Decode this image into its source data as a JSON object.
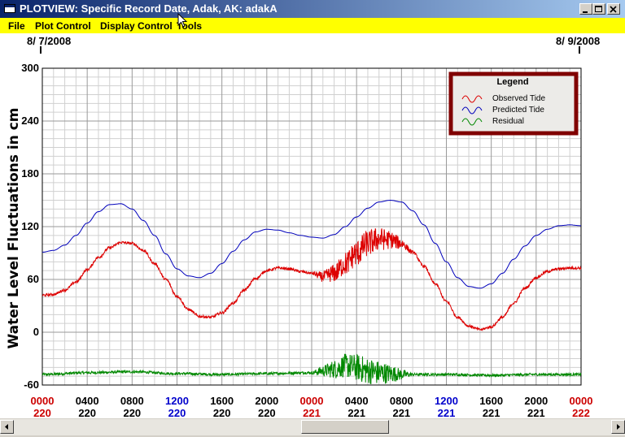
{
  "window": {
    "title": "PLOTVIEW: Specific Record Date, Adak, AK: adakA",
    "controls": [
      "minimize",
      "maximize",
      "close"
    ]
  },
  "menu": {
    "items": [
      "File",
      "Plot Control",
      "Display Control",
      "Tools"
    ]
  },
  "plot": {
    "date_left": "8/ 7/2008",
    "date_right": "8/ 9/2008",
    "ylabel": "Water Level Fluctuations in cm",
    "legend": {
      "title": "Legend",
      "observed": "Observed Tide",
      "predicted": "Predicted Tide",
      "residual": "Residual"
    }
  },
  "colors": {
    "observed": "#dd0000",
    "predicted": "#0000bb",
    "residual": "#008800",
    "legend_border": "#800000",
    "menubar": "#ffff00",
    "tick_red": "#cc0000",
    "tick_blue": "#0000cc"
  },
  "chart_data": {
    "type": "line",
    "ylabel": "Water Level Fluctuations in cm",
    "ylim": [
      -60,
      300
    ],
    "xlim_hours": [
      0,
      48
    ],
    "yticks": [
      "300",
      "240",
      "180",
      "120",
      "60",
      "0",
      "-60"
    ],
    "xticks": [
      {
        "time": "0000",
        "day": "220",
        "color": "red"
      },
      {
        "time": "0400",
        "day": "220",
        "color": "black"
      },
      {
        "time": "0800",
        "day": "220",
        "color": "black"
      },
      {
        "time": "1200",
        "day": "220",
        "color": "blue"
      },
      {
        "time": "1600",
        "day": "220",
        "color": "black"
      },
      {
        "time": "2000",
        "day": "220",
        "color": "black"
      },
      {
        "time": "0000",
        "day": "221",
        "color": "red"
      },
      {
        "time": "0400",
        "day": "221",
        "color": "black"
      },
      {
        "time": "0800",
        "day": "221",
        "color": "black"
      },
      {
        "time": "1200",
        "day": "221",
        "color": "blue"
      },
      {
        "time": "1600",
        "day": "221",
        "color": "black"
      },
      {
        "time": "2000",
        "day": "221",
        "color": "black"
      },
      {
        "time": "0000",
        "day": "222",
        "color": "red"
      }
    ],
    "grid": true,
    "legend_position": "top-right",
    "series": [
      {
        "name": "Predicted Tide",
        "color": "#0000bb",
        "x": [
          0,
          1,
          2,
          3,
          4,
          5,
          6,
          7,
          8,
          9,
          10,
          11,
          12,
          13,
          14,
          15,
          16,
          17,
          18,
          19,
          20,
          21,
          22,
          23,
          24,
          25,
          26,
          27,
          28,
          29,
          30,
          31,
          32,
          33,
          34,
          35,
          36,
          37,
          38,
          39,
          40,
          41,
          42,
          43,
          44,
          45,
          46,
          47,
          48
        ],
        "y": [
          91,
          93,
          99,
          110,
          124,
          137,
          145,
          146,
          140,
          127,
          110,
          89,
          72,
          64,
          62,
          67,
          78,
          92,
          105,
          114,
          117,
          116,
          113,
          110,
          108,
          107,
          111,
          120,
          131,
          141,
          148,
          150,
          148,
          138,
          122,
          101,
          80,
          62,
          52,
          50,
          55,
          67,
          83,
          98,
          110,
          117,
          121,
          122,
          121
        ]
      },
      {
        "name": "Observed Tide",
        "color": "#dd0000",
        "x": [
          0,
          1,
          2,
          3,
          4,
          5,
          6,
          7,
          8,
          9,
          10,
          11,
          12,
          13,
          14,
          15,
          16,
          17,
          18,
          19,
          20,
          21,
          22,
          23,
          24,
          25,
          26,
          27,
          28,
          29,
          30,
          31,
          32,
          33,
          34,
          35,
          36,
          37,
          38,
          39,
          40,
          41,
          42,
          43,
          44,
          45,
          46,
          47,
          48
        ],
        "y": [
          42,
          43,
          48,
          57,
          71,
          85,
          96,
          102,
          101,
          93,
          78,
          60,
          41,
          26,
          18,
          17,
          22,
          33,
          48,
          61,
          70,
          73,
          72,
          69,
          67,
          63,
          67,
          78,
          90,
          101,
          106,
          105,
          101,
          91,
          75,
          55,
          35,
          17,
          7,
          3,
          6,
          17,
          33,
          50,
          62,
          69,
          72,
          73,
          73
        ]
      },
      {
        "name": "Residual",
        "color": "#008800",
        "x": [
          0,
          4,
          8,
          12,
          16,
          20,
          24,
          25,
          26,
          27,
          28,
          29,
          30,
          31,
          32,
          36,
          40,
          44,
          48
        ],
        "y": [
          -48,
          -46,
          -45,
          -47,
          -48,
          -47,
          -46,
          -44,
          -42,
          -38,
          -40,
          -44,
          -46,
          -47,
          -48,
          -48,
          -49,
          -48,
          -48
        ]
      }
    ]
  }
}
